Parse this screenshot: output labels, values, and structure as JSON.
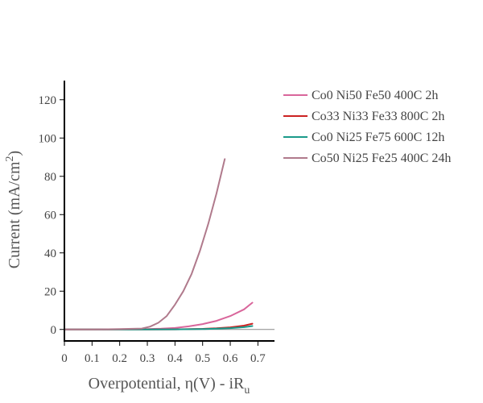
{
  "chart_data": {
    "type": "line",
    "xlabel": "Overpotential, η(V) - iR",
    "xlabel_sub": "u",
    "ylabel": "Current (mA/cm",
    "ylabel_sup": "2",
    "ylabel_end": ")",
    "xlim": [
      0,
      0.76
    ],
    "ylim": [
      -6,
      130
    ],
    "xticks": [
      0,
      0.1,
      0.2,
      0.3,
      0.4,
      0.5,
      0.6,
      0.7
    ],
    "xtick_labels": [
      "0",
      "0.1",
      "0.2",
      "0.3",
      "0.4",
      "0.5",
      "0.6",
      "0.7"
    ],
    "yticks": [
      0,
      20,
      40,
      60,
      80,
      100,
      120
    ],
    "ytick_labels": [
      "0",
      "20",
      "40",
      "60",
      "80",
      "100",
      "120"
    ],
    "zeroline": true,
    "legend_position": "top-right",
    "series": [
      {
        "name": "Co0 Ni50 Fe50 400C 2h",
        "color": "#d9669b",
        "x": [
          0,
          0.1,
          0.2,
          0.3,
          0.35,
          0.4,
          0.45,
          0.5,
          0.55,
          0.6,
          0.65,
          0.68
        ],
        "y": [
          0,
          0,
          0.1,
          0.2,
          0.4,
          0.8,
          1.6,
          2.8,
          4.5,
          7.0,
          10.5,
          14.0
        ]
      },
      {
        "name": "Co33 Ni33 Fe33 800C 2h",
        "color": "#cc2222",
        "x": [
          0,
          0.1,
          0.2,
          0.3,
          0.4,
          0.5,
          0.55,
          0.6,
          0.65,
          0.68
        ],
        "y": [
          0,
          0,
          0,
          0,
          0.05,
          0.3,
          0.6,
          1.1,
          2.0,
          3.0
        ]
      },
      {
        "name": "Co0 Ni25 Fe75 600C 12h",
        "color": "#1a9a8a",
        "x": [
          0,
          0.1,
          0.2,
          0.3,
          0.4,
          0.5,
          0.55,
          0.6,
          0.65,
          0.68
        ],
        "y": [
          0,
          0,
          0,
          0,
          0.05,
          0.2,
          0.4,
          0.7,
          1.2,
          1.8
        ]
      },
      {
        "name": "Co50 Ni25 Fe25 400C 24h",
        "color": "#b07a8c",
        "x": [
          0,
          0.1,
          0.2,
          0.28,
          0.31,
          0.34,
          0.37,
          0.4,
          0.43,
          0.46,
          0.49,
          0.52,
          0.55,
          0.58
        ],
        "y": [
          0,
          0,
          0.2,
          0.5,
          1.5,
          3.5,
          7.0,
          13.0,
          20.0,
          29.0,
          41.0,
          55.0,
          71.0,
          89.0
        ]
      }
    ]
  }
}
